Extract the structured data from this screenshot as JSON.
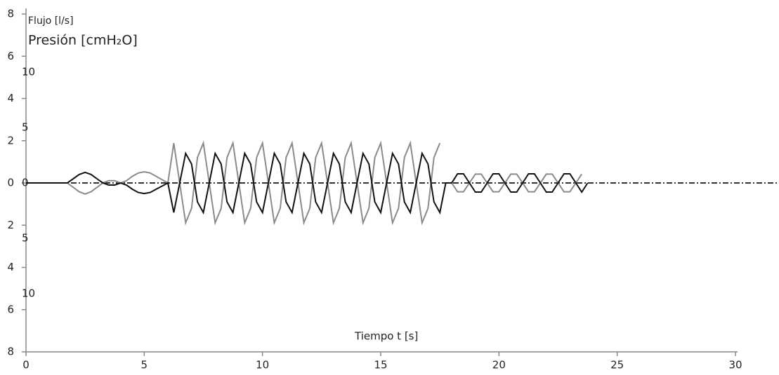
{
  "chart_data": {
    "type": "line",
    "title": "Flujo [l/s]",
    "y2_label": "Presión [cmH₂O]",
    "xlabel": "Tiempo t [s]",
    "xlim": [
      0,
      30
    ],
    "xticks": [
      0,
      5,
      10,
      15,
      20,
      25,
      30
    ],
    "ylim": [
      -8,
      8
    ],
    "yticks": [
      {
        "value": -8,
        "label": "8"
      },
      {
        "value": -6,
        "label": "6"
      },
      {
        "value": -4,
        "label": "4"
      },
      {
        "value": -2,
        "label": "2"
      },
      0,
      2,
      4,
      6,
      8
    ],
    "y2lim": [
      -15.25,
      15.25
    ],
    "y2ticks": [
      {
        "value": -10,
        "label": "10"
      },
      {
        "value": -5,
        "label": "5"
      },
      0,
      5,
      10
    ],
    "x": [
      0,
      0.25,
      0.5,
      0.75,
      1,
      1.25,
      1.5,
      1.75,
      2,
      2.25,
      2.5,
      2.75,
      3,
      3.25,
      3.5,
      3.75,
      4,
      4.25,
      4.5,
      4.75,
      5,
      5.25,
      5.5,
      5.75,
      6,
      6.25,
      6.5,
      6.75,
      7,
      7.25,
      7.5,
      7.75,
      8,
      8.25,
      8.5,
      8.75,
      9,
      9.25,
      9.5,
      9.75,
      10,
      10.25,
      10.5,
      10.75,
      11,
      11.25,
      11.5,
      11.75,
      12,
      12.25,
      12.5,
      12.75,
      13,
      13.25,
      13.5,
      13.75,
      14,
      14.25,
      14.5,
      14.75,
      15,
      15.25,
      15.5,
      15.75,
      16,
      16.25,
      16.5,
      16.75,
      17,
      17.25,
      17.5,
      17.75,
      18,
      18.25,
      18.5,
      18.75,
      19,
      19.25,
      19.5,
      19.75,
      20,
      20.25,
      20.5,
      20.75,
      21,
      21.25,
      21.5,
      21.75,
      22,
      22.25,
      22.5,
      22.75,
      23,
      23.25,
      23.5,
      23.75
    ],
    "series": [
      {
        "color": "#111111",
        "values": [
          0,
          0,
          0,
          0,
          0,
          0,
          0,
          0,
          0.2,
          0.4,
          0.5,
          0.4,
          0.2,
          0,
          -0.1,
          -0.1,
          0,
          -0.1,
          -0.3,
          -0.45,
          -0.5,
          -0.45,
          -0.3,
          -0.15,
          0,
          -1.4,
          0,
          1.4,
          0.9,
          -0.9,
          -1.4,
          0,
          1.4,
          0.9,
          -0.9,
          -1.4,
          0,
          1.4,
          0.9,
          -0.9,
          -1.4,
          0,
          1.4,
          0.9,
          -0.9,
          -1.4,
          0,
          1.4,
          0.9,
          -0.9,
          -1.4,
          0,
          1.4,
          0.9,
          -0.9,
          -1.4,
          0,
          1.4,
          0.9,
          -0.9,
          -1.4,
          0,
          1.4,
          0.9,
          -0.9,
          -1.4,
          0,
          1.4,
          0.9,
          -0.9,
          -1.4,
          0,
          0,
          0.43,
          0.43,
          0,
          -0.43,
          -0.43,
          0,
          0.43,
          0.43,
          0,
          -0.43,
          -0.43,
          0,
          0.43,
          0.43,
          0,
          -0.43,
          -0.43,
          0,
          0.43,
          0.43,
          0,
          -0.43,
          0
        ]
      },
      {
        "color": "#8a8a8a",
        "axis": "y2",
        "values": [
          0,
          0,
          0,
          0,
          0,
          0,
          0,
          0,
          -0.4,
          -0.8,
          -1,
          -0.8,
          -0.4,
          0,
          0.2,
          0.2,
          0,
          0.2,
          0.6,
          0.9,
          1,
          0.9,
          0.6,
          0.3,
          0,
          3.6,
          0,
          -3.6,
          -2.3,
          2.3,
          3.6,
          0,
          -3.6,
          -2.3,
          2.3,
          3.6,
          0,
          -3.6,
          -2.3,
          2.3,
          3.6,
          0,
          -3.6,
          -2.3,
          2.3,
          3.6,
          0,
          -3.6,
          -2.3,
          2.3,
          3.6,
          0,
          -3.6,
          -2.3,
          2.3,
          3.6,
          0,
          -3.6,
          -2.3,
          2.3,
          3.6,
          0,
          -3.6,
          -2.3,
          2.3,
          3.6,
          0,
          -3.6,
          -2.3,
          2.3,
          3.6,
          null,
          0,
          -0.8,
          -0.8,
          0,
          0.8,
          0.8,
          0,
          -0.8,
          -0.8,
          0,
          0.8,
          0.8,
          0,
          -0.8,
          -0.8,
          0,
          0.8,
          0.8,
          0,
          -0.8,
          -0.8,
          0,
          0.8,
          null
        ]
      }
    ]
  }
}
